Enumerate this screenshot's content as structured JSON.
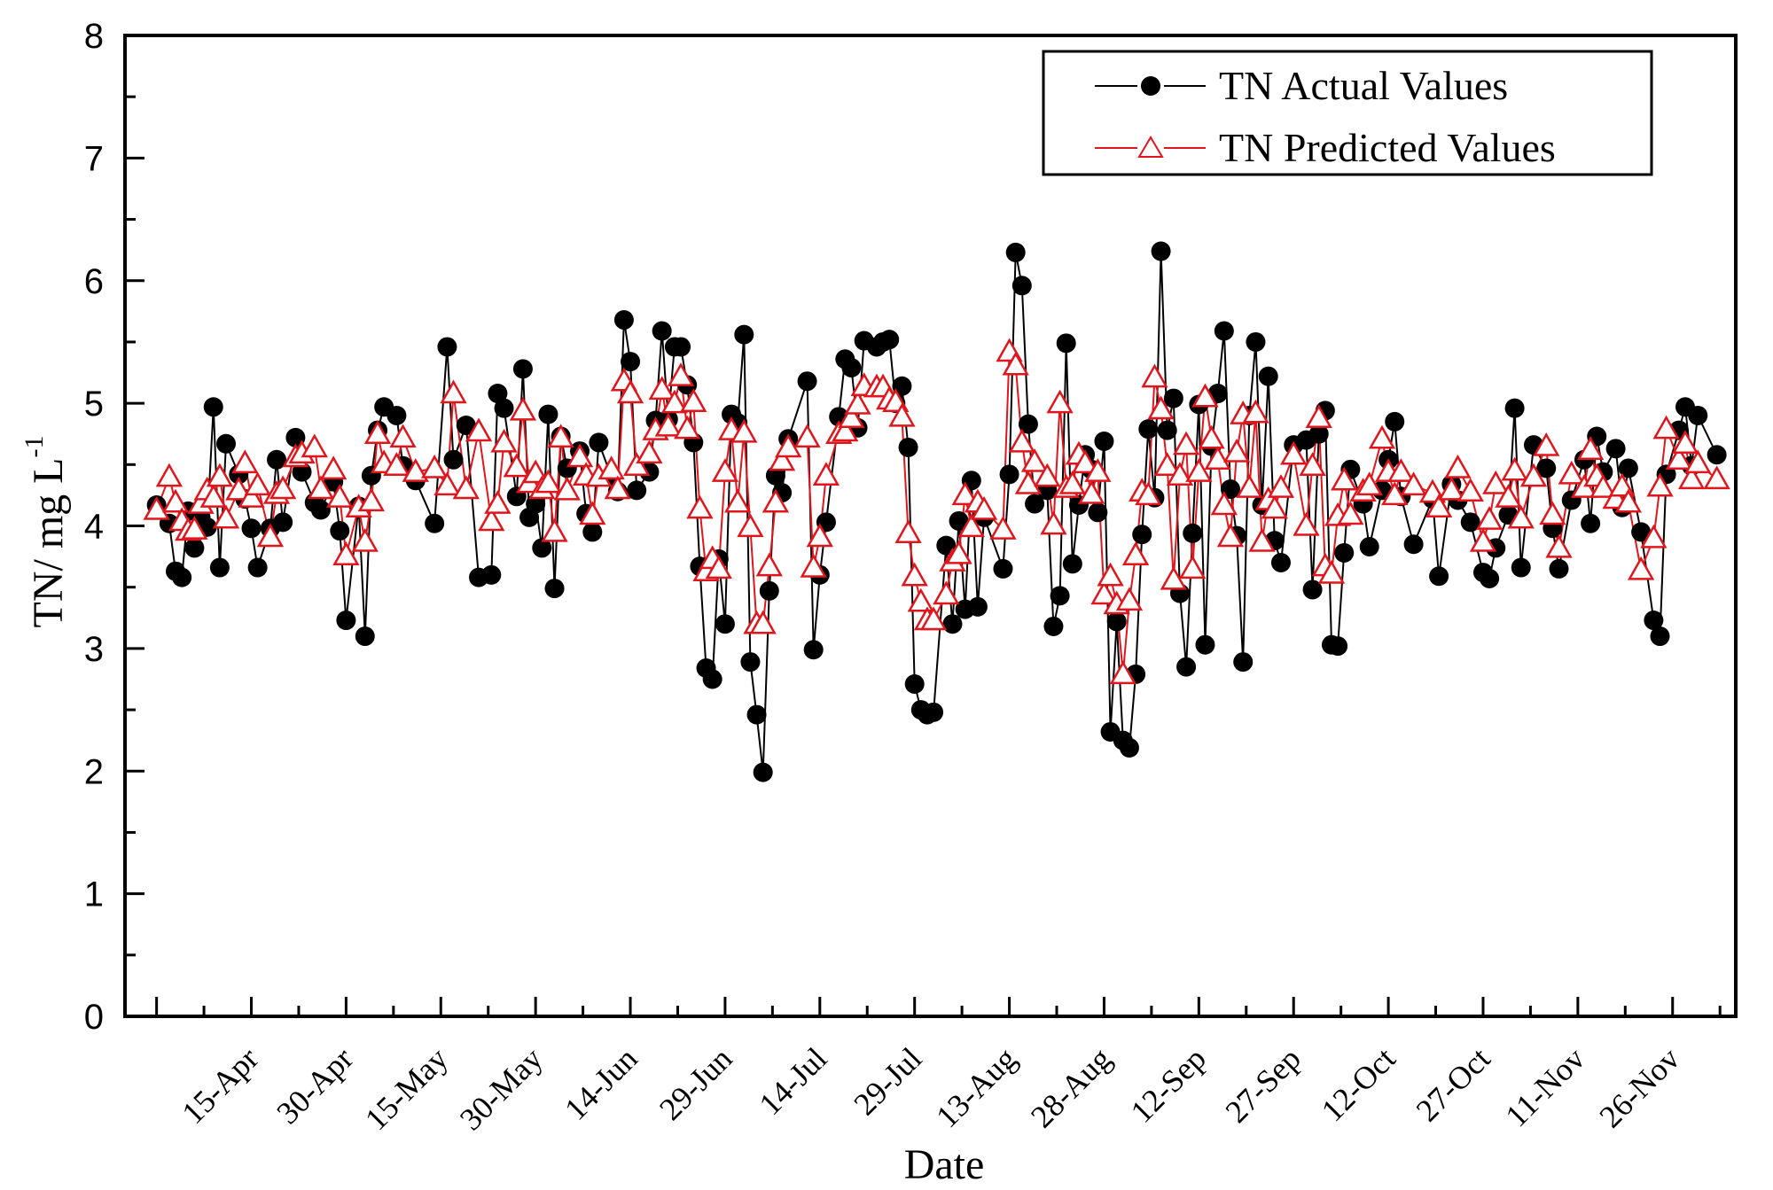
{
  "chart_data": {
    "type": "line",
    "title": "",
    "xlabel": "Date",
    "ylabel": "TN/ mg L",
    "ylabel_superscript": "-1",
    "ylim": [
      0,
      8
    ],
    "yticks": [
      "0",
      "1",
      "2",
      "3",
      "4",
      "5",
      "6",
      "7",
      "8"
    ],
    "x_unit": "day of year",
    "xlim": [
      85,
      340
    ],
    "xticks": [
      {
        "doy": 90,
        "label": ""
      },
      {
        "doy": 105,
        "label": "15-Apr"
      },
      {
        "doy": 120,
        "label": "30-Apr"
      },
      {
        "doy": 135,
        "label": "15-May"
      },
      {
        "doy": 150,
        "label": "30-May"
      },
      {
        "doy": 165,
        "label": "14-Jun"
      },
      {
        "doy": 180,
        "label": "29-Jun"
      },
      {
        "doy": 195,
        "label": "14-Jul"
      },
      {
        "doy": 210,
        "label": "29-Jul"
      },
      {
        "doy": 225,
        "label": "13-Aug"
      },
      {
        "doy": 240,
        "label": "28-Aug"
      },
      {
        "doy": 255,
        "label": "12-Sep"
      },
      {
        "doy": 270,
        "label": "27-Sep"
      },
      {
        "doy": 285,
        "label": "12-Oct"
      },
      {
        "doy": 300,
        "label": "27-Oct"
      },
      {
        "doy": 315,
        "label": "11-Nov"
      },
      {
        "doy": 330,
        "label": "26-Nov"
      }
    ],
    "grid": false,
    "legend_position": "top-right",
    "x": [
      90,
      92,
      93,
      94,
      95,
      96,
      97,
      98,
      99,
      100,
      101,
      103,
      104,
      105,
      106,
      108,
      109,
      110,
      112,
      113,
      115,
      116,
      118,
      119,
      120,
      122,
      123,
      124,
      125,
      126,
      128,
      129,
      131,
      134,
      136,
      137,
      139,
      141,
      143,
      144,
      145,
      147,
      148,
      149,
      150,
      151,
      152,
      153,
      154,
      155,
      157,
      158,
      159,
      160,
      162,
      163,
      164,
      165,
      166,
      168,
      169,
      170,
      171,
      172,
      173,
      174,
      175,
      176,
      177,
      178,
      179,
      180,
      181,
      182,
      183,
      184,
      185,
      186,
      187,
      188,
      189,
      190,
      193,
      194,
      195,
      196,
      198,
      199,
      200,
      201,
      202,
      204,
      205,
      206,
      207,
      208,
      209,
      210,
      211,
      212,
      213,
      215,
      216,
      217,
      218,
      219,
      220,
      221,
      224,
      225,
      226,
      227,
      228,
      229,
      231,
      232,
      233,
      234,
      235,
      236,
      237,
      238,
      239,
      240,
      241,
      242,
      243,
      244,
      245,
      246,
      247,
      248,
      249,
      250,
      251,
      252,
      253,
      254,
      255,
      256,
      257,
      258,
      259,
      260,
      261,
      262,
      263,
      264,
      265,
      266,
      267,
      268,
      270,
      272,
      273,
      274,
      275,
      276,
      277,
      278,
      279,
      281,
      282,
      284,
      285,
      286,
      287,
      289,
      292,
      293,
      295,
      296,
      298,
      300,
      301,
      302,
      304,
      305,
      306,
      308,
      310,
      311,
      312,
      314,
      316,
      317,
      318,
      319,
      321,
      322,
      323,
      325,
      327,
      328,
      329,
      331,
      332,
      333,
      334,
      337
    ],
    "series": [
      {
        "name": "TN Actual Values",
        "color": "#000000",
        "marker": "filled-circle",
        "values": [
          4.17,
          4.02,
          3.63,
          3.58,
          4.12,
          3.82,
          4.07,
          3.99,
          4.97,
          3.66,
          4.67,
          4.42,
          4.22,
          3.98,
          3.66,
          3.98,
          4.54,
          4.03,
          4.72,
          4.44,
          4.19,
          4.13,
          4.36,
          3.96,
          3.23,
          4.16,
          3.1,
          4.41,
          4.78,
          4.97,
          4.9,
          4.49,
          4.37,
          4.02,
          5.46,
          4.54,
          4.82,
          3.58,
          3.6,
          5.08,
          4.96,
          4.24,
          5.28,
          4.07,
          4.18,
          3.82,
          4.91,
          3.49,
          4.73,
          4.47,
          4.61,
          4.1,
          3.95,
          4.68,
          4.4,
          4.28,
          5.68,
          5.34,
          4.29,
          4.44,
          4.86,
          5.59,
          4.87,
          5.46,
          5.46,
          5.15,
          4.68,
          3.67,
          2.84,
          2.75,
          3.73,
          3.2,
          4.91,
          4.84,
          5.56,
          2.89,
          2.46,
          1.99,
          3.47,
          4.41,
          4.27,
          4.71,
          5.18,
          2.99,
          3.6,
          4.03,
          4.89,
          5.36,
          5.29,
          4.8,
          5.51,
          5.46,
          5.5,
          5.52,
          5.0,
          5.14,
          4.64,
          2.71,
          2.5,
          2.46,
          2.48,
          3.84,
          3.2,
          4.04,
          3.32,
          4.37,
          3.34,
          4.07,
          3.65,
          4.42,
          6.23,
          5.96,
          4.83,
          4.18,
          4.29,
          3.18,
          3.43,
          5.49,
          3.69,
          4.17,
          4.58,
          4.46,
          4.11,
          4.69,
          2.32,
          3.22,
          2.25,
          2.19,
          2.79,
          3.93,
          4.79,
          4.23,
          6.24,
          4.78,
          5.04,
          3.45,
          2.85,
          3.94,
          4.99,
          3.03,
          4.65,
          5.08,
          5.59,
          4.3,
          3.92,
          2.89,
          4.9,
          5.5,
          4.17,
          5.22,
          3.88,
          3.7,
          4.66,
          4.7,
          3.48,
          4.75,
          4.94,
          3.03,
          3.02,
          3.78,
          4.46,
          4.18,
          3.83,
          4.29,
          4.54,
          4.85,
          4.24,
          3.85,
          4.22,
          3.59,
          4.34,
          4.21,
          4.03,
          3.62,
          3.57,
          3.82,
          4.09,
          4.96,
          3.66,
          4.66,
          4.47,
          3.98,
          3.65,
          4.21,
          4.54,
          4.02,
          4.73,
          4.44,
          4.63,
          4.15,
          4.47,
          3.95,
          3.23,
          3.1,
          4.42,
          4.78,
          4.97,
          4.49,
          4.9,
          4.58
        ]
      },
      {
        "name": "TN Predicted Values",
        "color": "#e0161c",
        "marker": "open-triangle",
        "values": [
          4.13,
          4.4,
          4.19,
          4.04,
          3.96,
          3.97,
          4.18,
          4.29,
          4.23,
          4.4,
          4.06,
          4.29,
          4.51,
          4.23,
          4.33,
          3.91,
          4.26,
          4.3,
          4.56,
          4.59,
          4.64,
          4.3,
          4.46,
          4.23,
          3.76,
          4.15,
          3.87,
          4.2,
          4.75,
          4.51,
          4.49,
          4.72,
          4.44,
          4.47,
          4.33,
          5.08,
          4.3,
          4.77,
          4.04,
          4.18,
          4.68,
          4.48,
          4.94,
          4.35,
          4.43,
          4.3,
          4.35,
          3.95,
          4.72,
          4.29,
          4.56,
          4.41,
          4.09,
          4.4,
          4.46,
          4.3,
          5.18,
          5.08,
          4.49,
          4.59,
          4.78,
          5.11,
          4.81,
          5.0,
          5.22,
          4.79,
          5.01,
          4.14,
          3.63,
          3.73,
          3.65,
          4.44,
          4.78,
          4.19,
          4.76,
          3.99,
          3.2,
          3.2,
          3.67,
          4.19,
          4.53,
          4.64,
          4.72,
          3.66,
          3.91,
          4.41,
          4.75,
          4.77,
          4.88,
          4.99,
          5.14,
          5.13,
          5.13,
          5.03,
          5.01,
          4.89,
          3.94,
          3.59,
          3.38,
          3.23,
          3.23,
          3.44,
          3.71,
          3.77,
          4.25,
          3.99,
          4.19,
          4.13,
          3.97,
          5.42,
          5.31,
          4.68,
          4.34,
          4.52,
          4.4,
          4.01,
          5.0,
          4.31,
          4.34,
          4.58,
          4.51,
          4.26,
          4.44,
          3.44,
          3.59,
          3.36,
          2.79,
          3.39,
          3.76,
          4.28,
          4.25,
          5.21,
          4.95,
          4.49,
          3.56,
          4.41,
          4.66,
          3.65,
          4.44,
          5.05,
          4.71,
          4.54,
          4.17,
          3.91,
          4.6,
          4.91,
          4.31,
          4.92,
          3.87,
          4.21,
          4.14,
          4.31,
          4.58,
          4.0,
          4.49,
          4.88,
          3.67,
          3.61,
          4.08,
          4.37,
          4.09,
          4.28,
          4.33,
          4.71,
          4.44,
          4.25,
          4.44,
          4.33,
          4.27,
          4.15,
          4.29,
          4.47,
          4.28,
          3.87,
          4.05,
          4.34,
          4.23,
          4.45,
          4.06,
          4.4,
          4.65,
          4.09,
          3.82,
          4.42,
          4.31,
          4.62,
          4.4,
          4.31,
          4.22,
          4.32,
          4.19,
          3.64,
          3.9,
          4.32,
          4.79,
          4.54,
          4.67,
          4.38,
          4.51,
          4.38
        ]
      }
    ]
  },
  "legend": {
    "items": [
      {
        "label": "TN Actual Values"
      },
      {
        "label": "TN Predicted Values"
      }
    ]
  }
}
